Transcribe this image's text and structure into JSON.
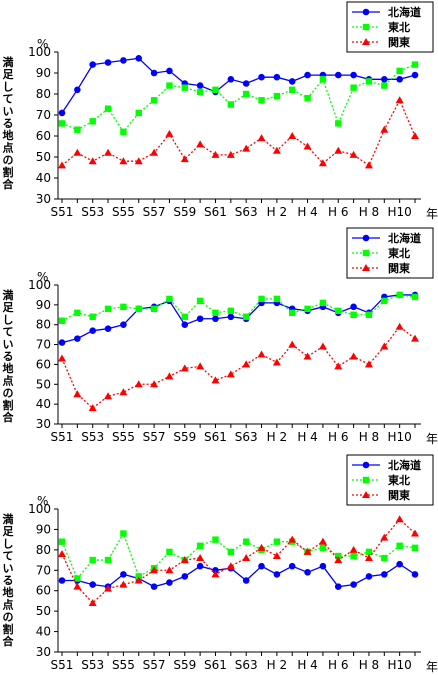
{
  "chart_data": [
    {
      "type": "line",
      "ylabel": "満足している地点の割合",
      "yunit": "%",
      "xunit": "年",
      "ylim": [
        30,
        100
      ],
      "yticks": [
        30,
        40,
        50,
        60,
        70,
        80,
        90,
        100
      ],
      "x_tick_labels": [
        "S51",
        "S53",
        "S55",
        "S57",
        "S59",
        "S61",
        "S63",
        "H 2",
        "H 4",
        "H 6",
        "H 8",
        "H10"
      ],
      "legend_position": "top-right",
      "series": [
        {
          "name": "北海道",
          "color": "#0000ff",
          "marker": "circle",
          "dash": "solid",
          "values": [
            71,
            82,
            94,
            95,
            96,
            97,
            90,
            91,
            85,
            84,
            81,
            87,
            85,
            88,
            88,
            86,
            89,
            89,
            89,
            89,
            87,
            87,
            87,
            89
          ]
        },
        {
          "name": "東北",
          "color": "#00ff00",
          "marker": "square",
          "dash": "dotted",
          "values": [
            66,
            63,
            67,
            73,
            62,
            71,
            77,
            84,
            83,
            81,
            82,
            75,
            80,
            77,
            79,
            82,
            78,
            87,
            66,
            83,
            86,
            84,
            91,
            94
          ]
        },
        {
          "name": "関東",
          "color": "#ff0000",
          "marker": "triangle",
          "dash": "dotted",
          "values": [
            46,
            52,
            48,
            52,
            48,
            48,
            52,
            61,
            49,
            56,
            51,
            51,
            54,
            59,
            53,
            60,
            55,
            47,
            53,
            51,
            46,
            63,
            77,
            60
          ]
        }
      ]
    },
    {
      "type": "line",
      "ylabel": "満足している地点の割合",
      "yunit": "%",
      "xunit": "年",
      "ylim": [
        30,
        100
      ],
      "yticks": [
        30,
        40,
        50,
        60,
        70,
        80,
        90,
        100
      ],
      "x_tick_labels": [
        "S51",
        "S53",
        "S55",
        "S57",
        "S59",
        "S61",
        "S63",
        "H 2",
        "H 4",
        "H 6",
        "H 8",
        "H10"
      ],
      "legend_position": "top-right",
      "series": [
        {
          "name": "北海道",
          "color": "#0000ff",
          "marker": "circle",
          "dash": "solid",
          "values": [
            71,
            73,
            77,
            78,
            80,
            88,
            89,
            92,
            80,
            83,
            83,
            84,
            83,
            91,
            91,
            88,
            87,
            89,
            86,
            89,
            86,
            94,
            95,
            95
          ]
        },
        {
          "name": "東北",
          "color": "#00ff00",
          "marker": "square",
          "dash": "dotted",
          "values": [
            82,
            86,
            84,
            88,
            89,
            88,
            88,
            93,
            84,
            92,
            86,
            87,
            84,
            93,
            93,
            86,
            88,
            91,
            87,
            85,
            85,
            92,
            95,
            94
          ]
        },
        {
          "name": "関東",
          "color": "#ff0000",
          "marker": "triangle",
          "dash": "dotted",
          "values": [
            63,
            45,
            38,
            44,
            46,
            50,
            50,
            54,
            58,
            59,
            52,
            55,
            60,
            65,
            61,
            70,
            64,
            69,
            59,
            64,
            60,
            69,
            79,
            73
          ]
        }
      ]
    },
    {
      "type": "line",
      "ylabel": "満足している地点の割合",
      "yunit": "%",
      "xunit": "年",
      "ylim": [
        30,
        100
      ],
      "yticks": [
        30,
        40,
        50,
        60,
        70,
        80,
        90,
        100
      ],
      "x_tick_labels": [
        "S51",
        "S53",
        "S55",
        "S57",
        "S59",
        "S61",
        "S63",
        "H 2",
        "H 4",
        "H 6",
        "H 8",
        "H10"
      ],
      "legend_position": "top-right",
      "series": [
        {
          "name": "北海道",
          "color": "#0000ff",
          "marker": "circle",
          "dash": "solid",
          "values": [
            65,
            65,
            63,
            62,
            68,
            66,
            62,
            64,
            67,
            72,
            70,
            71,
            65,
            72,
            68,
            72,
            69,
            72,
            62,
            63,
            67,
            68,
            73,
            68
          ]
        },
        {
          "name": "東北",
          "color": "#00ff00",
          "marker": "square",
          "dash": "dotted",
          "values": [
            84,
            66,
            75,
            75,
            88,
            67,
            71,
            79,
            75,
            82,
            85,
            79,
            84,
            80,
            84,
            84,
            79,
            81,
            77,
            77,
            79,
            76,
            82,
            81
          ]
        },
        {
          "name": "関東",
          "color": "#ff0000",
          "marker": "triangle",
          "dash": "dotted",
          "values": [
            78,
            62,
            54,
            61,
            63,
            65,
            70,
            70,
            75,
            76,
            68,
            72,
            76,
            81,
            77,
            85,
            79,
            84,
            75,
            80,
            76,
            86,
            95,
            88
          ]
        }
      ]
    }
  ]
}
